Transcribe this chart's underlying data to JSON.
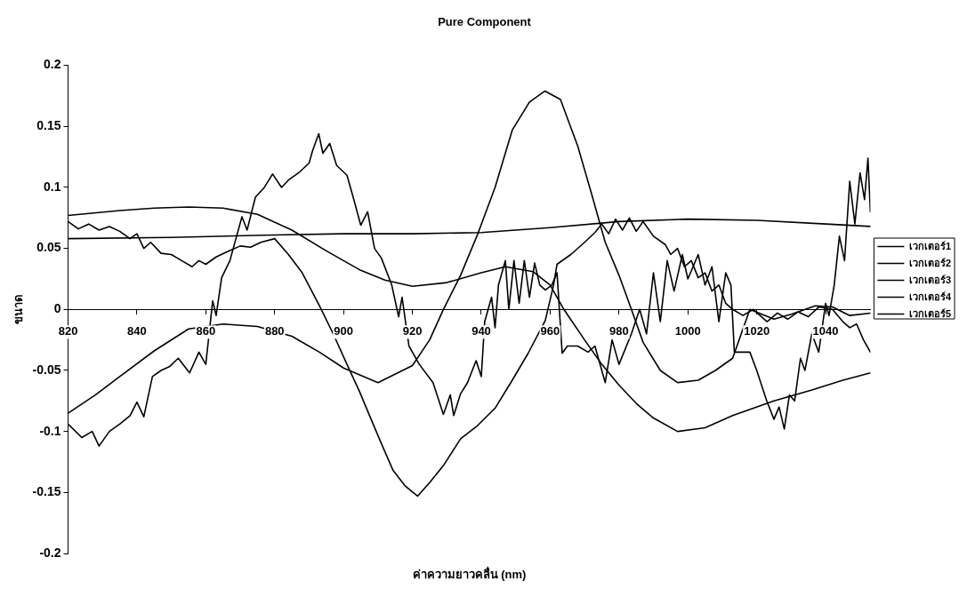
{
  "chart_data": {
    "type": "line",
    "title": "Pure Component",
    "xlabel": "ค่าความยาวคลื่น (nm)",
    "ylabel": "ขนาด",
    "xlim": [
      820,
      1053
    ],
    "xticks": [
      820,
      840,
      860,
      880,
      900,
      920,
      940,
      960,
      980,
      1000,
      1020,
      1040
    ],
    "ylim": [
      -0.2,
      0.2
    ],
    "yticks": [
      -0.2,
      -0.15,
      -0.1,
      -0.05,
      0,
      0.05,
      0.1,
      0.15,
      0.2
    ],
    "grid": false,
    "legend": "right",
    "marker": "none",
    "line_style": "solid",
    "series": [
      {
        "name": "เวกเตอร์1",
        "color": "#000000",
        "x": [
          820,
          850,
          880,
          900,
          920,
          940,
          960,
          980,
          1000,
          1020,
          1040,
          1053
        ],
        "values": [
          0.058,
          0.059,
          0.061,
          0.062,
          0.062,
          0.063,
          0.067,
          0.072,
          0.074,
          0.073,
          0.07,
          0.068
        ]
      },
      {
        "name": "เวกเตอร์2",
        "color": "#000000",
        "x": [
          820,
          835,
          845,
          855,
          865,
          875,
          885,
          895,
          905,
          912,
          920,
          930,
          940,
          947,
          955,
          960,
          964,
          970,
          975,
          980,
          985,
          990,
          997,
          1005,
          1013,
          1025,
          1036,
          1045,
          1053
        ],
        "values": [
          0.077,
          0.081,
          0.083,
          0.084,
          0.083,
          0.078,
          0.065,
          0.048,
          0.032,
          0.024,
          0.019,
          0.022,
          0.03,
          0.035,
          0.031,
          0.02,
          0,
          -0.025,
          -0.045,
          -0.062,
          -0.077,
          -0.089,
          -0.1,
          -0.097,
          -0.087,
          -0.075,
          -0.066,
          -0.058,
          -0.052
        ]
      },
      {
        "name": "เวกเตอร์3",
        "color": "#000000",
        "x": [
          820,
          828,
          835,
          845,
          855,
          865,
          875,
          885,
          893,
          900,
          910,
          920,
          925,
          929,
          934,
          939,
          944,
          949,
          954,
          958.5,
          963,
          968,
          972,
          976,
          980,
          983.6,
          987,
          992,
          997,
          1003,
          1008,
          1013,
          1018,
          1025,
          1030,
          1037,
          1042,
          1047,
          1053
        ],
        "values": [
          -0.085,
          -0.07,
          -0.055,
          -0.034,
          -0.016,
          -0.012,
          -0.014,
          -0.022,
          -0.035,
          -0.048,
          -0.06,
          -0.046,
          -0.025,
          0,
          0.028,
          0.062,
          0.1,
          0.147,
          0.17,
          0.179,
          0.172,
          0.134,
          0.095,
          0.055,
          0.028,
          0,
          -0.027,
          -0.05,
          -0.06,
          -0.058,
          -0.05,
          -0.04,
          0,
          -0.008,
          -0.004,
          0.003,
          0.002,
          -0.005,
          -0.003
        ]
      },
      {
        "name": "เวกเตอร์4",
        "color": "#000000",
        "x": [
          820,
          824,
          827,
          829,
          832,
          835,
          838,
          840,
          842,
          844.5,
          847,
          849.4,
          852,
          855.3,
          858,
          860,
          862,
          863,
          864.6,
          867,
          870.5,
          872,
          874.4,
          877,
          879.4,
          882,
          884,
          887,
          890,
          891,
          892.8,
          894,
          896,
          898,
          901,
          903,
          905,
          907,
          909,
          911,
          914,
          916,
          917,
          919,
          922,
          926,
          929,
          931,
          932,
          934,
          936,
          938.5,
          940,
          941,
          943,
          944,
          945,
          947,
          948,
          949.5,
          951,
          952.5,
          954,
          955.5,
          957,
          958.6,
          960.5,
          962,
          963.5,
          965,
          968,
          971,
          973,
          976,
          978,
          980,
          983.6,
          986,
          988,
          990,
          992,
          994,
          996,
          998.4,
          1000,
          1003,
          1005,
          1007,
          1009,
          1011,
          1012.5,
          1013.5,
          1018,
          1020,
          1022.9,
          1025,
          1026.5,
          1028,
          1029.5,
          1031,
          1032.7,
          1034,
          1036,
          1038,
          1040,
          1041,
          1042.5,
          1044,
          1045.5,
          1047,
          1048.5,
          1050,
          1051.3,
          1052.3,
          1053
        ],
        "values": [
          -0.094,
          -0.105,
          -0.1,
          -0.112,
          -0.1,
          -0.094,
          -0.087,
          -0.076,
          -0.088,
          -0.055,
          -0.05,
          -0.047,
          -0.04,
          -0.052,
          -0.035,
          -0.045,
          0.007,
          -0.005,
          0.026,
          0.04,
          0.076,
          0.065,
          0.092,
          0.1,
          0.111,
          0.1,
          0.106,
          0.112,
          0.12,
          0.13,
          0.144,
          0.128,
          0.136,
          0.118,
          0.11,
          0.09,
          0.069,
          0.08,
          0.05,
          0.042,
          0.02,
          -0.006,
          0.01,
          -0.03,
          -0.045,
          -0.06,
          -0.086,
          -0.07,
          -0.087,
          -0.069,
          -0.06,
          -0.042,
          -0.055,
          -0.01,
          0.01,
          -0.015,
          0.02,
          0.04,
          0,
          0.04,
          0.005,
          0.04,
          0.01,
          0.038,
          0.02,
          0.016,
          0.02,
          0.03,
          -0.036,
          -0.03,
          -0.03,
          -0.035,
          -0.03,
          -0.06,
          -0.025,
          -0.045,
          -0.02,
          0,
          -0.02,
          0.03,
          -0.01,
          0.04,
          0.015,
          0.045,
          0.025,
          0.045,
          0.02,
          0.035,
          -0.01,
          0.03,
          0.02,
          -0.035,
          -0.035,
          -0.05,
          -0.075,
          -0.09,
          -0.08,
          -0.098,
          -0.07,
          -0.075,
          -0.04,
          -0.05,
          -0.02,
          -0.035,
          0.005,
          -0.005,
          0.02,
          0.06,
          0.04,
          0.105,
          0.07,
          0.112,
          0.09,
          0.124,
          0.08
        ]
      },
      {
        "name": "เวกเตอร์5",
        "color": "#000000",
        "x": [
          820,
          823,
          826,
          829,
          832,
          835,
          838,
          840,
          842,
          844,
          847,
          850,
          853,
          856,
          858,
          860,
          863,
          866,
          870,
          873,
          876,
          880,
          884,
          888,
          893,
          897,
          901,
          904.6,
          908,
          911,
          914.4,
          918,
          921.5,
          925,
          929,
          934,
          939,
          944,
          949,
          953.6,
          958.6,
          961,
          962,
          966,
          970,
          973,
          975,
          977,
          979,
          981,
          983,
          985,
          987,
          990,
          993.5,
          995,
          997,
          999,
          1001,
          1003,
          1005,
          1007,
          1009,
          1011,
          1013,
          1016,
          1019,
          1023,
          1026,
          1029,
          1032,
          1035,
          1038,
          1042,
          1045,
          1047,
          1049,
          1051,
          1053
        ],
        "values": [
          0.072,
          0.066,
          0.07,
          0.065,
          0.068,
          0.064,
          0.058,
          0.062,
          0.05,
          0.055,
          0.046,
          0.045,
          0.04,
          0.035,
          0.04,
          0.037,
          0.043,
          0.047,
          0.052,
          0.051,
          0.055,
          0.058,
          0.045,
          0.03,
          0.003,
          -0.02,
          -0.045,
          -0.067,
          -0.09,
          -0.11,
          -0.132,
          -0.145,
          -0.153,
          -0.142,
          -0.128,
          -0.106,
          -0.095,
          -0.081,
          -0.058,
          -0.036,
          -0.009,
          0.02,
          0.037,
          0.045,
          0.055,
          0.063,
          0.07,
          0.062,
          0.074,
          0.065,
          0.075,
          0.064,
          0.072,
          0.06,
          0.053,
          0.045,
          0.05,
          0.035,
          0.04,
          0.026,
          0.03,
          0.015,
          0.02,
          0.005,
          0,
          -0.005,
          0,
          -0.01,
          -0.003,
          -0.008,
          -0.002,
          -0.006,
          0.002,
          0,
          -0.01,
          -0.015,
          -0.012,
          -0.025,
          -0.035
        ]
      }
    ]
  }
}
